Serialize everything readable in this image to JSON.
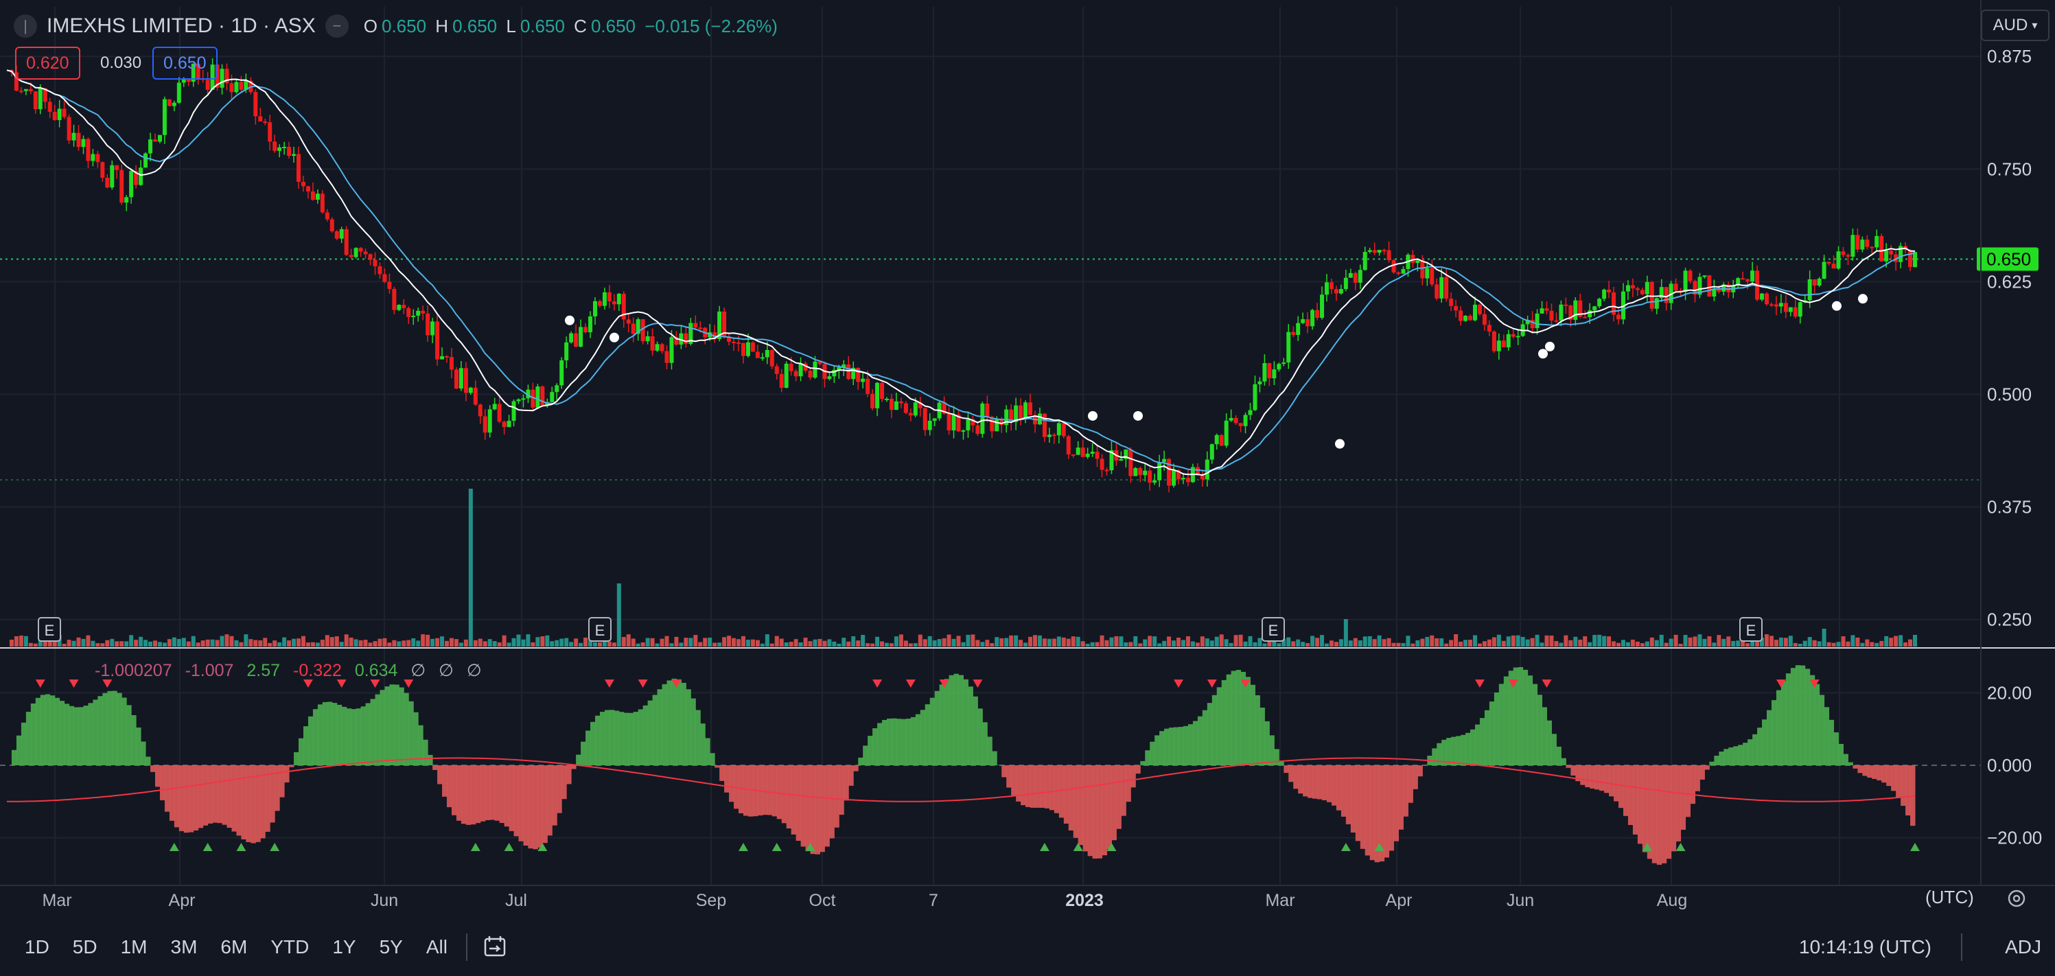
{
  "symbol": {
    "title": "IMEXHS LIMITED · 1D · ASX",
    "collapse_icon": "minus-circle-icon"
  },
  "ohlc": {
    "o_label": "O",
    "o": "0.650",
    "h_label": "H",
    "h": "0.650",
    "l_label": "L",
    "l": "0.650",
    "c_label": "C",
    "c": "0.650",
    "change": "−0.015 (−2.26%)"
  },
  "trade": {
    "sell": "0.620",
    "spread": "0.030",
    "buy": "0.650"
  },
  "currency": "AUD",
  "price_axis": {
    "ticks": [
      "0.875",
      "0.750",
      "0.625",
      "0.500",
      "0.375",
      "0.250"
    ],
    "last_price": "0.650"
  },
  "indicator": {
    "values": [
      "-1.000207",
      "-1.007",
      "2.57",
      "-0.322",
      "0.634",
      "∅",
      "∅",
      "∅"
    ],
    "ticks": [
      "20.00",
      "0.000",
      "−20.00"
    ]
  },
  "time_axis": {
    "labels": [
      "Mar",
      "Apr",
      "Jun",
      "Jul",
      "Sep",
      "Oct",
      "7",
      "2023",
      "Mar",
      "Apr",
      "Jun",
      "Aug"
    ],
    "timezone": "(UTC)"
  },
  "earnings_marker": "E",
  "ranges": [
    "1D",
    "5D",
    "1M",
    "3M",
    "6M",
    "YTD",
    "1Y",
    "5Y",
    "All"
  ],
  "clock": "10:14:19 (UTC)",
  "adj": "ADJ",
  "colors": {
    "background": "#131722",
    "up": "#22dd22",
    "down": "#ee1c1c",
    "ma_fast": "#ffffff",
    "ma_slow": "#4fb3e8",
    "osc_pos": "#4caf50",
    "osc_neg": "#e05a5a",
    "signal": "#f23645"
  },
  "chart_data": {
    "type": "candlestick",
    "price_axis_range": [
      0.22,
      0.93
    ],
    "approx_close_path": [
      {
        "x": "Feb",
        "y": 0.86
      },
      {
        "x": "Mar",
        "y": 0.8
      },
      {
        "x": "Mar",
        "y": 0.72
      },
      {
        "x": "Apr",
        "y": 0.86
      },
      {
        "x": "May",
        "y": 0.84
      },
      {
        "x": "May",
        "y": 0.73
      },
      {
        "x": "Jun",
        "y": 0.64
      },
      {
        "x": "Jun",
        "y": 0.58
      },
      {
        "x": "Jun",
        "y": 0.47
      },
      {
        "x": "Jul",
        "y": 0.5
      },
      {
        "x": "Jul",
        "y": 0.62
      },
      {
        "x": "Aug",
        "y": 0.55
      },
      {
        "x": "Aug",
        "y": 0.58
      },
      {
        "x": "Sep",
        "y": 0.52
      },
      {
        "x": "Oct",
        "y": 0.52
      },
      {
        "x": "Nov",
        "y": 0.48
      },
      {
        "x": "Dec",
        "y": 0.47
      },
      {
        "x": "2023",
        "y": 0.48
      },
      {
        "x": "Jan",
        "y": 0.44
      },
      {
        "x": "Feb",
        "y": 0.42
      },
      {
        "x": "Mar",
        "y": 0.41
      },
      {
        "x": "Mar",
        "y": 0.51
      },
      {
        "x": "Apr",
        "y": 0.6
      },
      {
        "x": "Apr",
        "y": 0.66
      },
      {
        "x": "May",
        "y": 0.62
      },
      {
        "x": "Jun",
        "y": 0.56
      },
      {
        "x": "Jun",
        "y": 0.6
      },
      {
        "x": "Jul",
        "y": 0.6
      },
      {
        "x": "Aug",
        "y": 0.62
      },
      {
        "x": "Aug",
        "y": 0.63
      },
      {
        "x": "Sep",
        "y": 0.6
      },
      {
        "x": "Oct",
        "y": 0.67
      },
      {
        "x": "Oct",
        "y": 0.65
      }
    ],
    "volume_peaks": [
      "Jun",
      "Jun"
    ],
    "oscillator_range": [
      -30,
      30
    ],
    "grid": true
  }
}
